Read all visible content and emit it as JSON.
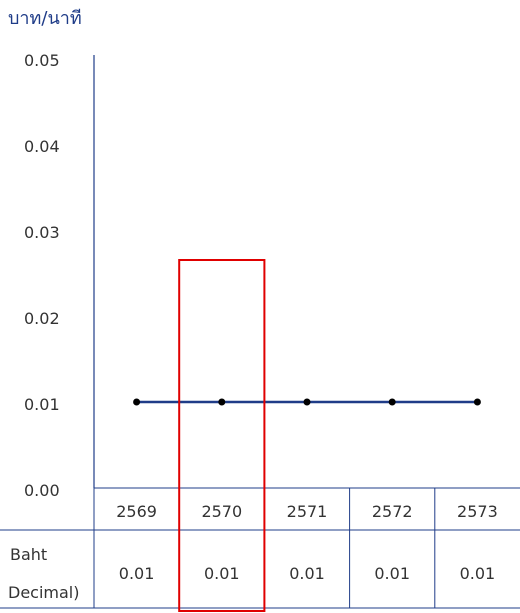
{
  "chart_data": {
    "type": "line",
    "unit_label": "บาท/นาที",
    "y_ticks": [
      "0.00",
      "0.01",
      "0.02",
      "0.03",
      "0.04",
      "0.05"
    ],
    "ylim": [
      0,
      0.05
    ],
    "categories": [
      "2569",
      "2570",
      "2571",
      "2572",
      "2573"
    ],
    "series": [
      {
        "values": [
          0.01,
          0.01,
          0.01,
          0.01,
          0.01
        ]
      }
    ],
    "line_color": "#1f3c88",
    "marker_color": "#000000",
    "highlight_color": "#e00000",
    "highlight_category": "2570",
    "table": {
      "row_label_line1": "Baht",
      "row_label_line2": "Decimal)",
      "values": [
        "0.01",
        "0.01",
        "0.01",
        "0.01",
        "0.01"
      ]
    }
  }
}
